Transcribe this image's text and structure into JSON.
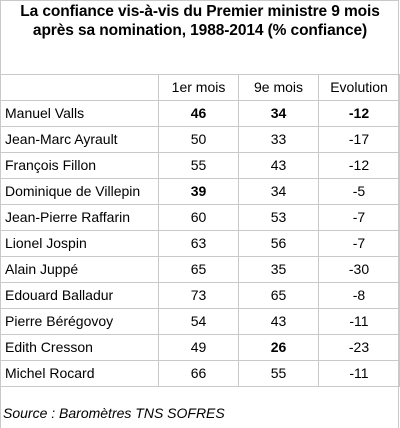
{
  "chart_data": {
    "type": "table",
    "title": "La confiance vis-à-vis du Premier ministre 9 mois après sa nomination, 1988-2014 (% confiance)",
    "columns": [
      "",
      "1er mois",
      "9e mois",
      "Evolution"
    ],
    "rows": [
      {
        "name": "Manuel Valls",
        "m1": "46",
        "m9": "34",
        "evo": "-12",
        "bold": [
          "m1",
          "m9",
          "evo"
        ]
      },
      {
        "name": "Jean-Marc Ayrault",
        "m1": "50",
        "m9": "33",
        "evo": "-17",
        "bold": []
      },
      {
        "name": "François Fillon",
        "m1": "55",
        "m9": "43",
        "evo": "-12",
        "bold": []
      },
      {
        "name": "Dominique de Villepin",
        "m1": "39",
        "m9": "34",
        "evo": "-5",
        "bold": [
          "m1"
        ]
      },
      {
        "name": "Jean-Pierre Raffarin",
        "m1": "60",
        "m9": "53",
        "evo": "-7",
        "bold": []
      },
      {
        "name": "Lionel Jospin",
        "m1": "63",
        "m9": "56",
        "evo": "-7",
        "bold": []
      },
      {
        "name": "Alain Juppé",
        "m1": "65",
        "m9": "35",
        "evo": "-30",
        "bold": []
      },
      {
        "name": "Edouard Balladur",
        "m1": "73",
        "m9": "65",
        "evo": "-8",
        "bold": []
      },
      {
        "name": "Pierre Bérégovoy",
        "m1": "54",
        "m9": "43",
        "evo": "-11",
        "bold": []
      },
      {
        "name": "Edith Cresson",
        "m1": "49",
        "m9": "26",
        "evo": "-23",
        "bold": [
          "m9"
        ]
      },
      {
        "name": "Michel Rocard",
        "m1": "66",
        "m9": "55",
        "evo": "-11",
        "bold": []
      }
    ],
    "source": "Source : Baromètres TNS SOFRES",
    "grid": true
  }
}
